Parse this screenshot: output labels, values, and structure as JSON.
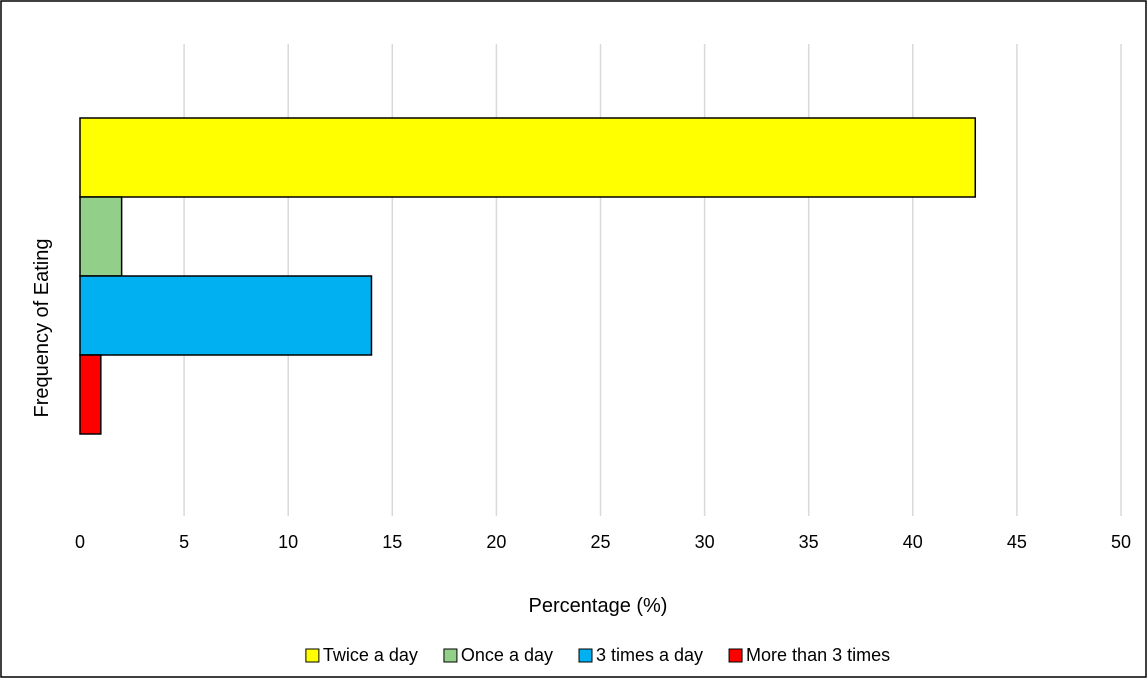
{
  "chart_data": {
    "type": "bar",
    "orientation": "horizontal",
    "title": "",
    "xlabel": "Percentage (%)",
    "ylabel": "Frequency of Eating",
    "xlim": [
      0,
      50
    ],
    "xticks": [
      0,
      5,
      10,
      15,
      20,
      25,
      30,
      35,
      40,
      45,
      50
    ],
    "grid": "vertical",
    "legend_position": "bottom",
    "series": [
      {
        "name": "Twice a day",
        "value": 43,
        "color": "#ffff00"
      },
      {
        "name": "Once a day",
        "value": 2,
        "color": "#92d08a"
      },
      {
        "name": "3 times a day",
        "value": 14,
        "color": "#00b0f0"
      },
      {
        "name": "More than 3 times",
        "value": 1,
        "color": "#ff0000"
      }
    ]
  }
}
